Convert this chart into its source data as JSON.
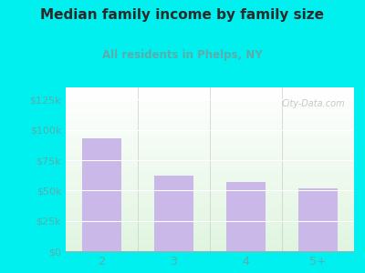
{
  "title": "Median family income by family size",
  "subtitle": "All residents in Phelps, NY",
  "categories": [
    "2",
    "3",
    "4",
    "5+"
  ],
  "values": [
    93000,
    62000,
    57000,
    52000
  ],
  "bar_color": "#c9b8e8",
  "title_color": "#2a2a2a",
  "subtitle_color": "#5aadad",
  "outer_bg_color": "#00efef",
  "yticks": [
    0,
    25000,
    50000,
    75000,
    100000,
    125000
  ],
  "ytick_labels": [
    "$0",
    "$25k",
    "$50k",
    "$75k",
    "$100k",
    "$125k"
  ],
  "ylim": [
    0,
    135000
  ],
  "watermark": "City-Data.com",
  "tick_color": "#5aadad",
  "grid_color": "#d0e8d0"
}
